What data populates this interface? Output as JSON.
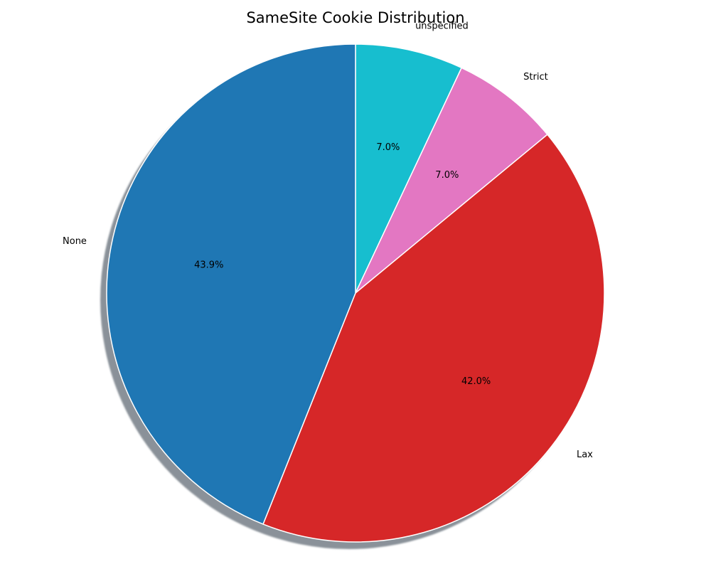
{
  "chart_data": {
    "type": "pie",
    "title": "SameSite Cookie Distribution",
    "slices": [
      {
        "label": "unspecified",
        "value": 7.0,
        "pct_label": "7.0%",
        "color": "#17becf"
      },
      {
        "label": "Strict",
        "value": 7.0,
        "pct_label": "7.0%",
        "color": "#e377c2"
      },
      {
        "label": "Lax",
        "value": 42.0,
        "pct_label": "42.0%",
        "color": "#d62728"
      },
      {
        "label": "None",
        "value": 43.9,
        "pct_label": "43.9%",
        "color": "#1f77b4"
      }
    ],
    "start_angle": "top",
    "direction": "clockwise",
    "shadow": true
  }
}
